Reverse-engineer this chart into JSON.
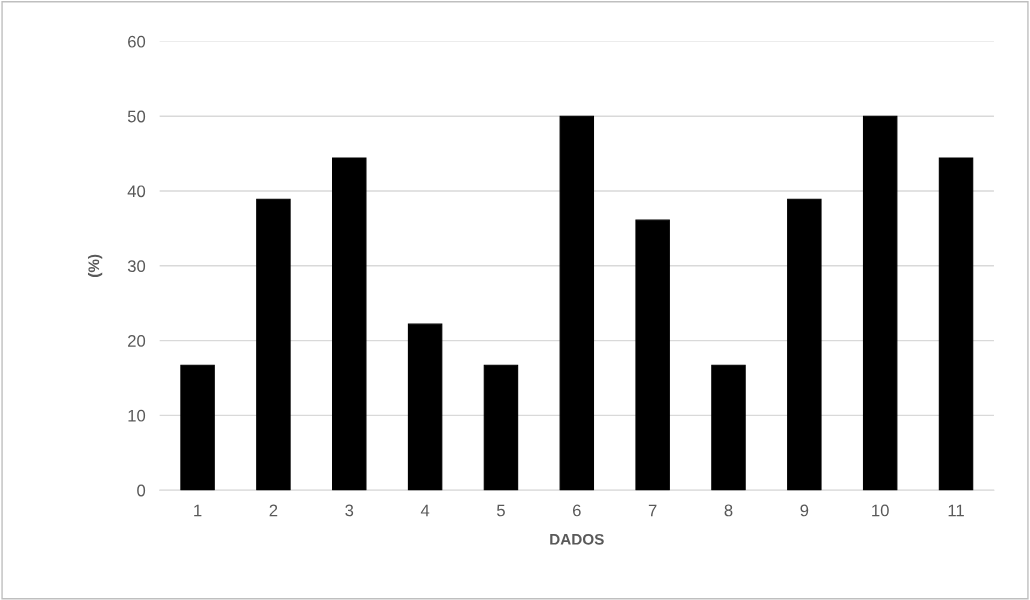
{
  "chart_data": {
    "type": "bar",
    "xlabel": "DADOS",
    "ylabel": "(%)",
    "categories": [
      "1",
      "2",
      "3",
      "4",
      "5",
      "6",
      "7",
      "8",
      "9",
      "10",
      "11"
    ],
    "values": [
      16.7,
      38.9,
      44.4,
      22.2,
      16.7,
      50,
      36.1,
      16.7,
      38.9,
      50,
      44.4
    ],
    "color": "#000000",
    "ylim": [
      0,
      60
    ],
    "yticks": [
      0,
      10,
      20,
      30,
      40,
      50,
      60
    ],
    "grid": "y",
    "legend": false
  }
}
